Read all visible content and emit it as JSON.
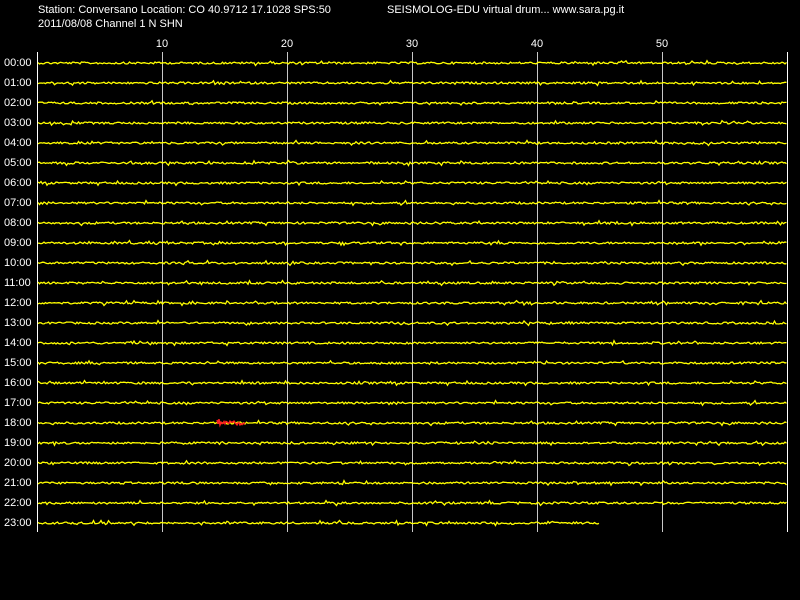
{
  "header": {
    "station": "Station: Conversano Location: CO 40.9712 17.1028 SPS:50",
    "title": "SEISMOLOG-EDU virtual drum... www.sara.pg.it",
    "date_channel": "2011/08/08  Channel 1 N SHN"
  },
  "chart_data": {
    "type": "drum",
    "xlim": [
      0,
      60
    ],
    "xticks": [
      10,
      20,
      30,
      40,
      50
    ],
    "rows": [
      "00:00",
      "01:00",
      "02:00",
      "03:00",
      "04:00",
      "05:00",
      "06:00",
      "07:00",
      "08:00",
      "09:00",
      "10:00",
      "11:00",
      "12:00",
      "13:00",
      "14:00",
      "15:00",
      "16:00",
      "17:00",
      "18:00",
      "19:00",
      "20:00",
      "21:00",
      "22:00",
      "23:00"
    ],
    "last_trace_end": 45,
    "color": "#ffff00",
    "grid": true
  }
}
